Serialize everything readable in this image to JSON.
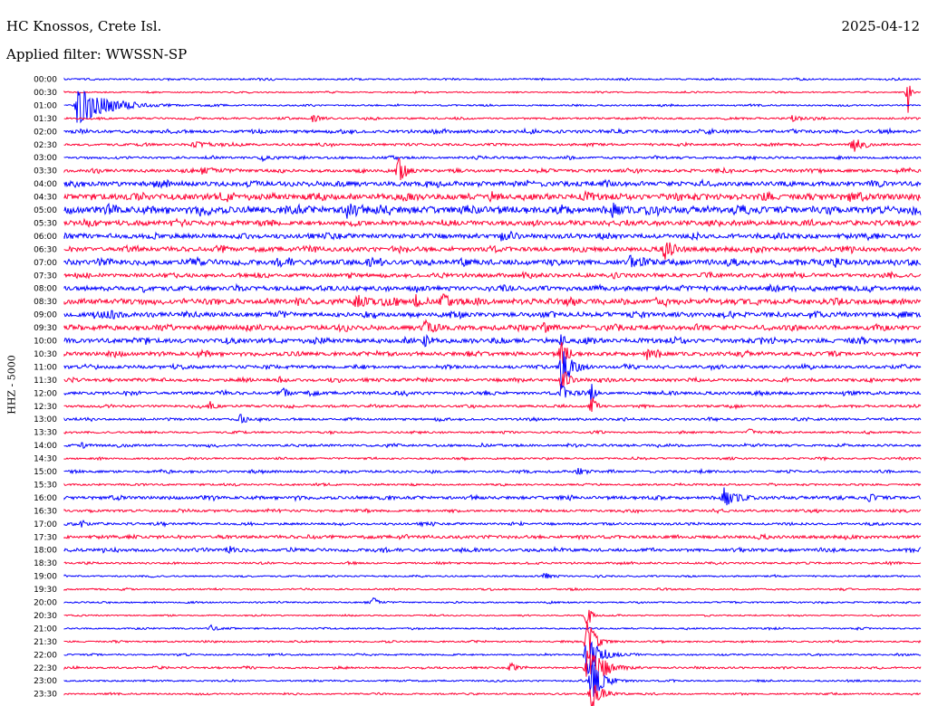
{
  "header": {
    "station": "HC Knossos, Crete Isl.",
    "date": "2025-04-12",
    "filter": "Applied filter: WWSSN-SP"
  },
  "chart_data": {
    "type": "line",
    "title": "HC Knossos, Crete Isl.",
    "subtitle": "Applied filter: WWSSN-SP",
    "date": "2025-04-12",
    "ylabel": "HHZ - 5000",
    "xlabel": "",
    "colors": [
      "#0000ff",
      "#ff0033"
    ],
    "rows": [
      "00:00",
      "00:30",
      "01:00",
      "01:30",
      "02:00",
      "02:30",
      "03:00",
      "03:30",
      "04:00",
      "04:30",
      "05:00",
      "05:30",
      "06:00",
      "06:30",
      "07:00",
      "07:30",
      "08:00",
      "08:30",
      "09:00",
      "09:30",
      "10:00",
      "10:30",
      "11:00",
      "11:30",
      "12:00",
      "12:30",
      "13:00",
      "13:30",
      "14:00",
      "14:30",
      "15:00",
      "15:30",
      "16:00",
      "16:30",
      "17:00",
      "17:30",
      "18:00",
      "18:30",
      "19:00",
      "19:30",
      "20:00",
      "20:30",
      "21:00",
      "21:30",
      "22:00",
      "22:30",
      "23:00",
      "23:30"
    ],
    "row_noise": [
      1,
      0.8,
      1,
      1.2,
      2,
      1.5,
      1.5,
      2,
      3,
      4,
      4.5,
      3,
      3,
      3,
      3.5,
      2.5,
      3,
      3.5,
      3,
      3,
      3,
      2.5,
      2,
      2,
      2,
      1.5,
      1.5,
      1.2,
      1.5,
      1.2,
      1.5,
      1.2,
      2,
      1.5,
      1.5,
      2,
      2,
      1.2,
      1,
      1,
      1,
      0.8,
      1,
      1,
      1,
      1.2,
      1,
      1
    ],
    "events": [
      {
        "row": "00:30",
        "x": 0.985,
        "amp": 30,
        "width": 0.002
      },
      {
        "row": "01:00",
        "x": 0.015,
        "amp": 22,
        "width": 0.03
      },
      {
        "row": "01:30",
        "x": 0.29,
        "amp": 4,
        "width": 0.008
      },
      {
        "row": "01:30",
        "x": 0.85,
        "amp": 3,
        "width": 0.01
      },
      {
        "row": "02:30",
        "x": 0.92,
        "amp": 9,
        "width": 0.008
      },
      {
        "row": "02:30",
        "x": 0.15,
        "amp": 3,
        "width": 0.02
      },
      {
        "row": "03:00",
        "x": 0.23,
        "amp": 3,
        "width": 0.01
      },
      {
        "row": "03:30",
        "x": 0.39,
        "amp": 20,
        "width": 0.006
      },
      {
        "row": "03:30",
        "x": 0.16,
        "amp": 3,
        "width": 0.02
      },
      {
        "row": "05:00",
        "x": 0.33,
        "amp": 8,
        "width": 0.01
      },
      {
        "row": "05:00",
        "x": 0.64,
        "amp": 7,
        "width": 0.008
      },
      {
        "row": "06:00",
        "x": 0.51,
        "amp": 5,
        "width": 0.006
      },
      {
        "row": "06:30",
        "x": 0.7,
        "amp": 10,
        "width": 0.008
      },
      {
        "row": "07:00",
        "x": 0.66,
        "amp": 7,
        "width": 0.006
      },
      {
        "row": "07:00",
        "x": 0.9,
        "amp": 4,
        "width": 0.006
      },
      {
        "row": "08:30",
        "x": 0.34,
        "amp": 7,
        "width": 0.015
      },
      {
        "row": "08:30",
        "x": 0.41,
        "amp": 8,
        "width": 0.005
      },
      {
        "row": "08:30",
        "x": 0.44,
        "amp": 8,
        "width": 0.008
      },
      {
        "row": "09:00",
        "x": 0.05,
        "amp": 6,
        "width": 0.01
      },
      {
        "row": "09:30",
        "x": 0.42,
        "amp": 8,
        "width": 0.008
      },
      {
        "row": "09:30",
        "x": 0.56,
        "amp": 6,
        "width": 0.006
      },
      {
        "row": "10:00",
        "x": 0.42,
        "amp": 9,
        "width": 0.004
      },
      {
        "row": "10:00",
        "x": 0.58,
        "amp": 10,
        "width": 0.004
      },
      {
        "row": "10:30",
        "x": 0.58,
        "amp": 14,
        "width": 0.006
      },
      {
        "row": "10:30",
        "x": 0.68,
        "amp": 5,
        "width": 0.008
      },
      {
        "row": "11:00",
        "x": 0.58,
        "amp": 25,
        "width": 0.01
      },
      {
        "row": "11:30",
        "x": 0.58,
        "amp": 14,
        "width": 0.008
      },
      {
        "row": "11:30",
        "x": 0.25,
        "amp": 6,
        "width": 0.004
      },
      {
        "row": "12:00",
        "x": 0.58,
        "amp": 10,
        "width": 0.006
      },
      {
        "row": "12:00",
        "x": 0.255,
        "amp": 6,
        "width": 0.006
      },
      {
        "row": "12:00",
        "x": 0.615,
        "amp": 14,
        "width": 0.003
      },
      {
        "row": "12:30",
        "x": 0.615,
        "amp": 18,
        "width": 0.004
      },
      {
        "row": "12:30",
        "x": 0.17,
        "amp": 5,
        "width": 0.006
      },
      {
        "row": "13:00",
        "x": 0.205,
        "amp": 6,
        "width": 0.006
      },
      {
        "row": "13:30",
        "x": 0.8,
        "amp": 8,
        "width": 0.003
      },
      {
        "row": "14:00",
        "x": 0.02,
        "amp": 4,
        "width": 0.006
      },
      {
        "row": "15:00",
        "x": 0.6,
        "amp": 5,
        "width": 0.006
      },
      {
        "row": "16:00",
        "x": 0.77,
        "amp": 12,
        "width": 0.01
      },
      {
        "row": "16:00",
        "x": 0.94,
        "amp": 4,
        "width": 0.008
      },
      {
        "row": "17:00",
        "x": 0.02,
        "amp": 4,
        "width": 0.006
      },
      {
        "row": "18:00",
        "x": 0.19,
        "amp": 5,
        "width": 0.008
      },
      {
        "row": "19:00",
        "x": 0.56,
        "amp": 4,
        "width": 0.008
      },
      {
        "row": "20:00",
        "x": 0.36,
        "amp": 5,
        "width": 0.006
      },
      {
        "row": "20:30",
        "x": 0.61,
        "amp": 18,
        "width": 0.004
      },
      {
        "row": "21:00",
        "x": 0.17,
        "amp": 4,
        "width": 0.006
      },
      {
        "row": "21:30",
        "x": 0.61,
        "amp": 30,
        "width": 0.008
      },
      {
        "row": "22:00",
        "x": 0.61,
        "amp": 30,
        "width": 0.012
      },
      {
        "row": "22:30",
        "x": 0.61,
        "amp": 30,
        "width": 0.015
      },
      {
        "row": "22:30",
        "x": 0.52,
        "amp": 5,
        "width": 0.006
      },
      {
        "row": "23:00",
        "x": 0.615,
        "amp": 25,
        "width": 0.012
      },
      {
        "row": "23:30",
        "x": 0.615,
        "amp": 20,
        "width": 0.01
      }
    ]
  }
}
